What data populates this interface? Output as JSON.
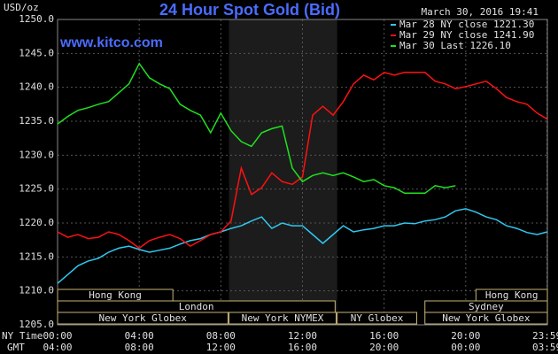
{
  "chart_data": {
    "type": "line",
    "title": "24 Hour Spot Gold (Bid)",
    "y_unit": "USD/oz",
    "watermark": "www.kitco.com",
    "timestamp": "March 30, 2016 19:41",
    "x_axis_names": [
      "NY Time",
      "GMT"
    ],
    "x": [
      0,
      0.5,
      1,
      1.5,
      2,
      2.5,
      3,
      3.5,
      4,
      4.5,
      5,
      5.5,
      6,
      6.5,
      7,
      7.5,
      8,
      8.5,
      9,
      9.5,
      10,
      10.5,
      11,
      11.5,
      12,
      12.5,
      13,
      13.5,
      14,
      14.5,
      15,
      15.5,
      16,
      16.5,
      17,
      17.5,
      18,
      18.5,
      19,
      19.5,
      20,
      20.5,
      21,
      21.5,
      22,
      22.5,
      23,
      23.5,
      24
    ],
    "xlim": [
      0,
      24
    ],
    "xticks": [
      {
        "value": 0,
        "label": "00:00"
      },
      {
        "value": 4,
        "label": "04:00"
      },
      {
        "value": 8,
        "label": "08:00"
      },
      {
        "value": 12,
        "label": "12:00"
      },
      {
        "value": 16,
        "label": "16:00"
      },
      {
        "value": 20,
        "label": "20:00"
      },
      {
        "value": 23.98,
        "label": "23:59"
      }
    ],
    "gmt_labels": [
      "04:00",
      "08:00",
      "12:00",
      "16:00",
      "20:00",
      "00:00",
      "03:59"
    ],
    "ylim": [
      1205,
      1250
    ],
    "yticks": [
      {
        "value": 1205,
        "label": "1205.0"
      },
      {
        "value": 1210,
        "label": "1210.0"
      },
      {
        "value": 1215,
        "label": "1215.0"
      },
      {
        "value": 1220,
        "label": "1220.0"
      },
      {
        "value": 1225,
        "label": "1225.0"
      },
      {
        "value": 1230,
        "label": "1230.0"
      },
      {
        "value": 1235,
        "label": "1235.0"
      },
      {
        "value": 1240,
        "label": "1240.0"
      },
      {
        "value": 1245,
        "label": "1245.0"
      },
      {
        "value": 1250,
        "label": "1250.0"
      }
    ],
    "grid": true,
    "highlight_range": [
      8.4,
      13.7
    ],
    "series": [
      {
        "name": "Mar 28 NY close 1221.30",
        "color": "#30c8f0",
        "values": [
          1211.1,
          1212.4,
          1213.7,
          1214.4,
          1214.8,
          1215.7,
          1216.3,
          1216.6,
          1216.1,
          1215.7,
          1216.0,
          1216.3,
          1216.9,
          1217.4,
          1217.7,
          1218.3,
          1218.7,
          1219.2,
          1219.6,
          1220.3,
          1220.9,
          1219.2,
          1220.0,
          1219.6,
          1219.6,
          1218.3,
          1217.0,
          1218.3,
          1219.6,
          1218.7,
          1219.0,
          1219.2,
          1219.6,
          1219.6,
          1220.0,
          1219.9,
          1220.3,
          1220.5,
          1220.9,
          1221.8,
          1222.1,
          1221.6,
          1220.9,
          1220.5,
          1219.6,
          1219.2,
          1218.6,
          1218.3,
          1218.7
        ]
      },
      {
        "name": "Mar 29 NY close 1241.90",
        "color": "#ff1010",
        "values": [
          1218.7,
          1217.9,
          1218.3,
          1217.7,
          1217.9,
          1218.7,
          1218.3,
          1217.4,
          1216.3,
          1217.4,
          1217.9,
          1218.3,
          1217.7,
          1216.6,
          1217.4,
          1218.3,
          1218.7,
          1220.3,
          1228.1,
          1224.2,
          1225.2,
          1227.4,
          1226.1,
          1225.7,
          1226.8,
          1235.9,
          1237.2,
          1235.9,
          1237.9,
          1240.5,
          1241.8,
          1241.1,
          1242.2,
          1241.8,
          1242.2,
          1242.2,
          1242.2,
          1240.9,
          1240.5,
          1239.8,
          1240.1,
          1240.5,
          1240.9,
          1239.8,
          1238.5,
          1237.9,
          1237.5,
          1236.2,
          1235.3
        ]
      },
      {
        "name": "Mar 30 Last 1226.10",
        "color": "#20e020",
        "values": [
          1234.6,
          1235.7,
          1236.6,
          1237.0,
          1237.5,
          1237.9,
          1239.2,
          1240.5,
          1243.5,
          1241.4,
          1240.5,
          1239.8,
          1237.5,
          1236.6,
          1235.9,
          1233.3,
          1236.2,
          1233.6,
          1232.0,
          1231.3,
          1233.3,
          1233.9,
          1234.3,
          1228.1,
          1226.1,
          1227.0,
          1227.4,
          1227.0,
          1227.4,
          1226.8,
          1226.1,
          1226.4,
          1225.5,
          1225.2,
          1224.4,
          1224.4,
          1224.4,
          1225.5,
          1225.2,
          1225.5,
          null,
          null,
          null,
          null,
          null,
          null,
          null,
          null,
          null
        ]
      }
    ],
    "sessions": [
      {
        "name": "Hong Kong",
        "start": 0,
        "end": 5.65,
        "row": 0
      },
      {
        "name": "Hong Kong",
        "start": 20.5,
        "end": 24,
        "row": 0
      },
      {
        "name": "London",
        "start": 0,
        "end": 13.6,
        "row": 1
      },
      {
        "name": "Sydney",
        "start": 18,
        "end": 24,
        "row": 1
      },
      {
        "name": "New York Globex",
        "start": 0,
        "end": 8.35,
        "row": 2
      },
      {
        "name": "New York NYMEX",
        "start": 8.4,
        "end": 13.65,
        "row": 2
      },
      {
        "name": "NY Globex",
        "start": 13.7,
        "end": 17.6,
        "row": 2
      },
      {
        "name": "New York Globex",
        "start": 18,
        "end": 24,
        "row": 2
      }
    ]
  }
}
